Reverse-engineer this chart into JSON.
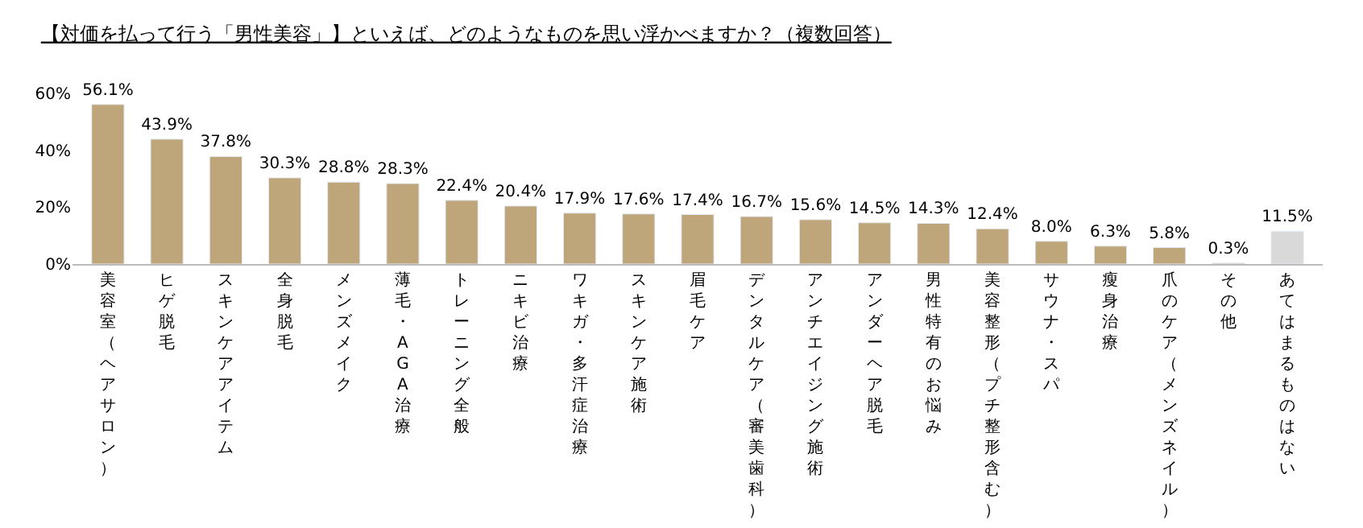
{
  "chart_data": {
    "type": "bar",
    "title": "【対価を払って行う「男性美容」】といえば、どのようなものを思い浮かべますか？（複数回答）",
    "categories": [
      "美容室（ヘアサロン）",
      "ヒゲ脱毛",
      "スキンケアアイテム",
      "全身脱毛",
      "メンズメイク",
      "薄毛・AGA治療",
      "トレーニング全般",
      "ニキビ治療",
      "ワキガ・多汗症治療",
      "スキンケア施術",
      "眉毛ケア",
      "デンタルケア（審美歯科）",
      "アンチエイジング施術",
      "アンダーヘア脱毛",
      "男性特有のお悩み",
      "美容整形（プチ整形含む）",
      "サウナ・スパ",
      "瘦身治療",
      "爪のケア（メンズネイル）",
      "その他",
      "あてはまるものはない"
    ],
    "values": [
      56.1,
      43.9,
      37.8,
      30.3,
      28.8,
      28.3,
      22.4,
      20.4,
      17.9,
      17.6,
      17.4,
      16.7,
      15.6,
      14.5,
      14.3,
      12.4,
      8.0,
      6.3,
      5.8,
      0.3,
      11.5
    ],
    "value_labels": [
      "56.1%",
      "43.9%",
      "37.8%",
      "30.3%",
      "28.8%",
      "28.3%",
      "22.4%",
      "20.4%",
      "17.9%",
      "17.6%",
      "17.4%",
      "16.7%",
      "15.6%",
      "14.5%",
      "14.3%",
      "12.4%",
      "8.0%",
      "6.3%",
      "5.8%",
      "0.3%",
      "11.5%"
    ],
    "colors": [
      "#bfa57a",
      "#bfa57a",
      "#bfa57a",
      "#bfa57a",
      "#bfa57a",
      "#bfa57a",
      "#bfa57a",
      "#bfa57a",
      "#bfa57a",
      "#bfa57a",
      "#bfa57a",
      "#bfa57a",
      "#bfa57a",
      "#bfa57a",
      "#bfa57a",
      "#bfa57a",
      "#bfa57a",
      "#bfa57a",
      "#bfa57a",
      "#bfa57a",
      "#d9d9d9"
    ],
    "ylim": [
      0,
      60
    ],
    "yticks": [
      {
        "value": 0,
        "label": "0%"
      },
      {
        "value": 20,
        "label": "20%"
      },
      {
        "value": 40,
        "label": "40%"
      },
      {
        "value": 60,
        "label": "60%"
      }
    ],
    "legend": false
  }
}
